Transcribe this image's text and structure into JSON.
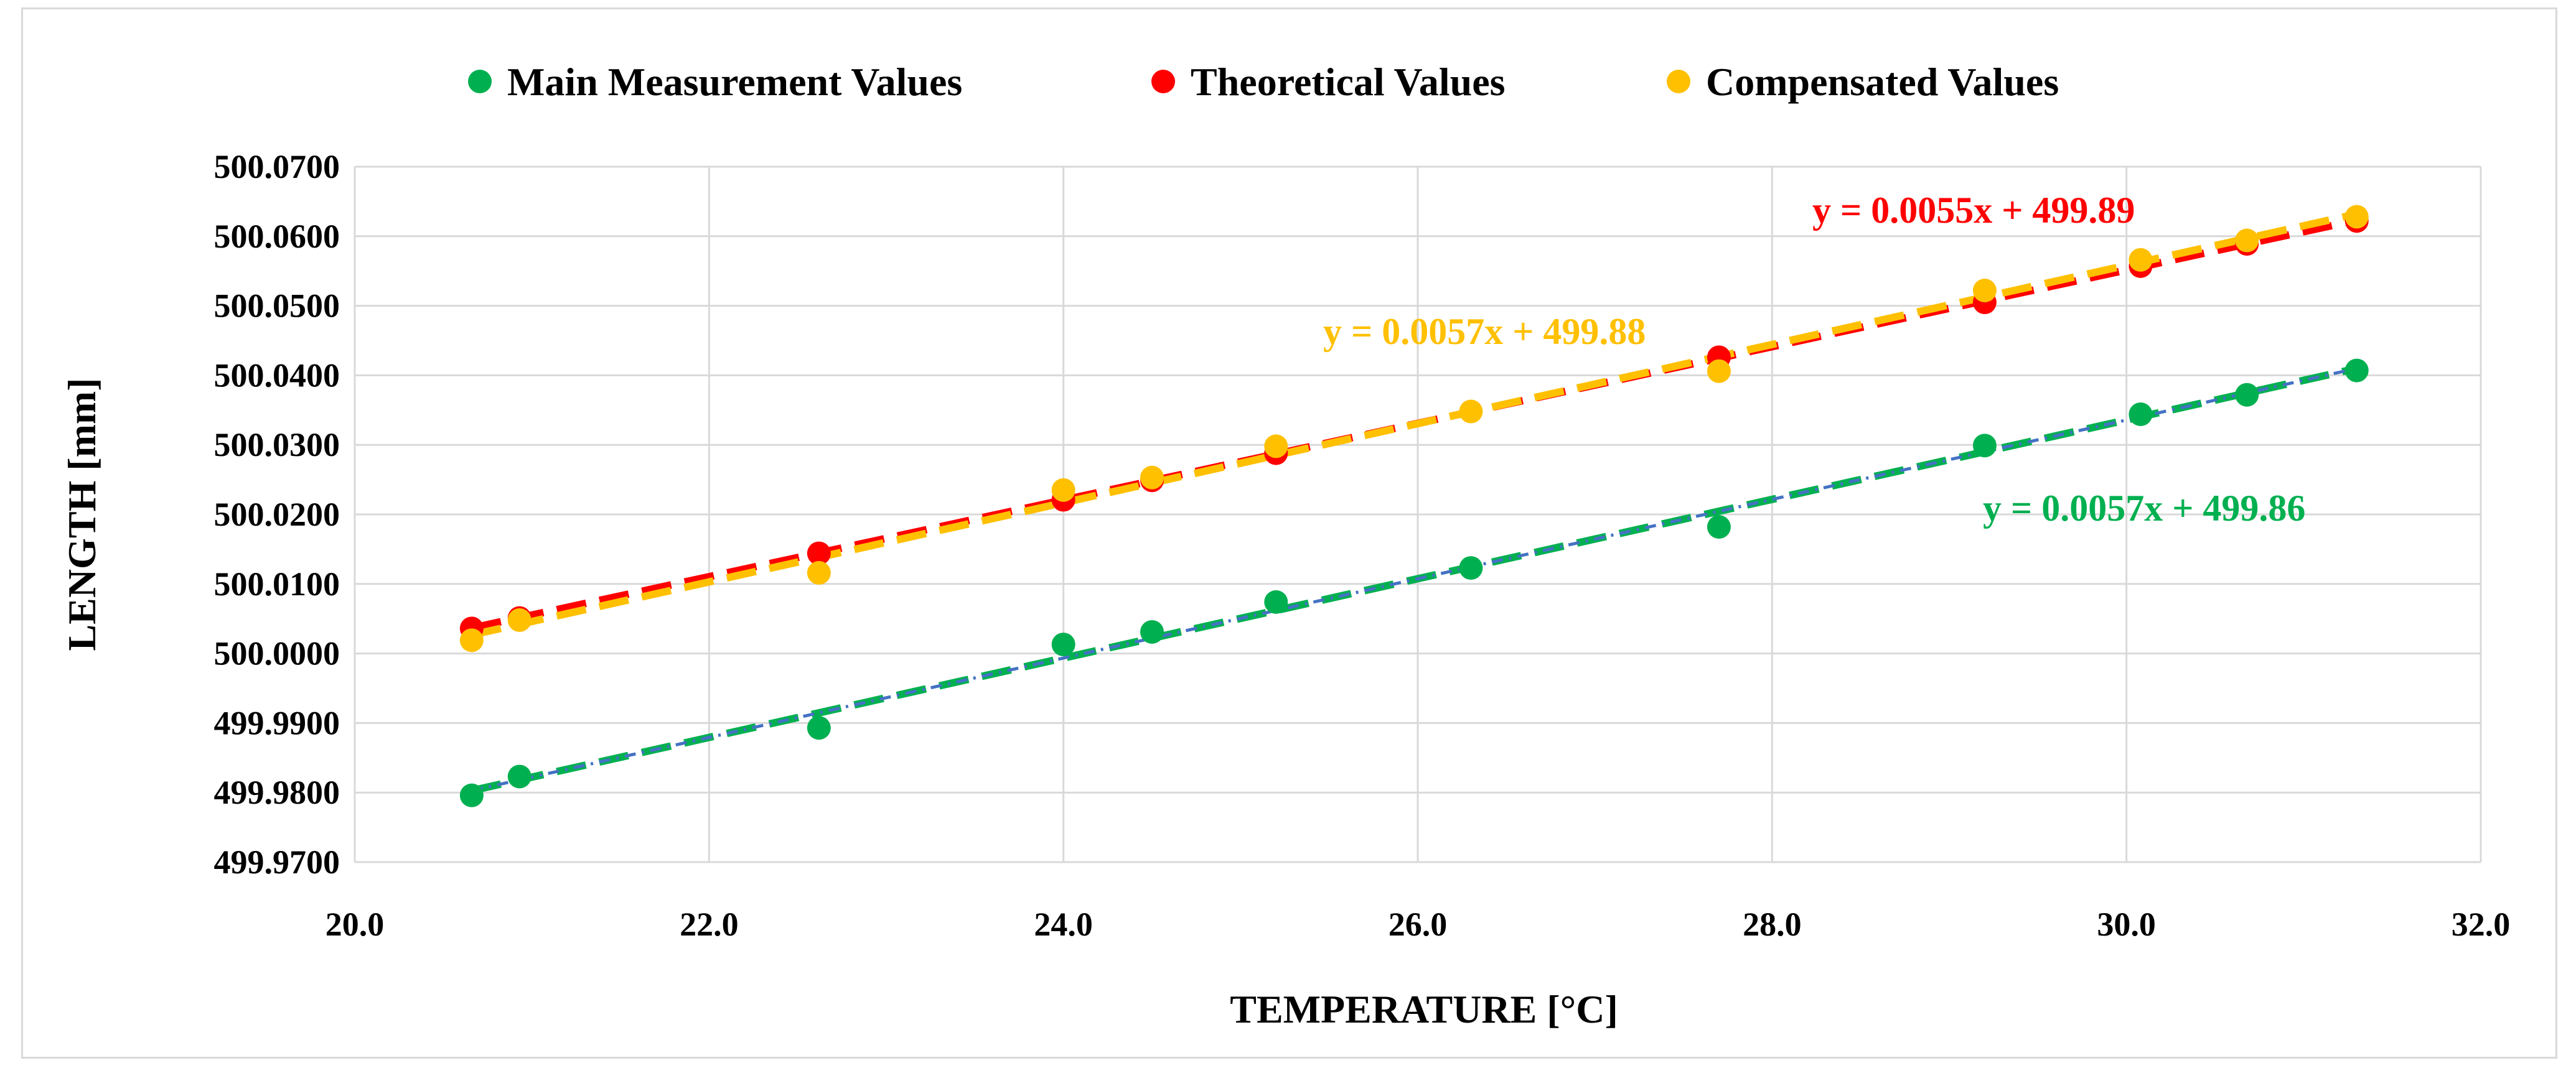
{
  "chart_data": {
    "type": "scatter",
    "title": "",
    "xlabel": "TEMPERATURE [°C]",
    "ylabel": "LENGTH [mm]",
    "xlim": [
      20.0,
      32.0
    ],
    "ylim": [
      499.97,
      500.07
    ],
    "x_ticks": [
      "20.0",
      "22.0",
      "24.0",
      "26.0",
      "28.0",
      "30.0",
      "32.0"
    ],
    "y_ticks": [
      "499.9700",
      "499.9800",
      "499.9900",
      "500.0000",
      "500.0100",
      "500.0200",
      "500.0300",
      "500.0400",
      "500.0500",
      "500.0600",
      "500.0700"
    ],
    "grid": true,
    "legend_position": "top",
    "series": [
      {
        "name": "Main Measurement Values",
        "color": "#00b050",
        "x": [
          20.66,
          20.93,
          22.62,
          24.0,
          24.5,
          25.2,
          26.3,
          27.7,
          29.2,
          30.08,
          30.68,
          31.3
        ],
        "y": [
          499.9796,
          499.9823,
          499.9893,
          500.0013,
          500.0031,
          500.0074,
          500.0123,
          500.0182,
          500.0299,
          500.0344,
          500.0372,
          500.0407
        ],
        "trendline": {
          "slope": 0.0057,
          "intercept": 499.86,
          "equation": "y = 0.0057x + 499.86",
          "color": "#00b050",
          "inner_color": "#4472c4"
        }
      },
      {
        "name": "Theoretical Values",
        "color": "#ff0000",
        "x": [
          20.66,
          20.93,
          22.62,
          24.0,
          24.5,
          25.2,
          27.7,
          29.2,
          30.08,
          30.68,
          31.3
        ],
        "y": [
          500.0036,
          500.0051,
          500.0144,
          500.0221,
          500.0249,
          500.0288,
          500.0426,
          500.0505,
          500.0557,
          500.0589,
          500.0622
        ],
        "trendline": {
          "slope": 0.0055,
          "intercept": 499.89,
          "equation": "y = 0.0055x + 499.89",
          "color": "#ff0000"
        }
      },
      {
        "name": "Compensated Values",
        "color": "#ffc000",
        "x": [
          20.66,
          20.93,
          22.62,
          24.0,
          24.5,
          25.2,
          26.3,
          27.7,
          29.2,
          30.08,
          30.68,
          31.3
        ],
        "y": [
          500.0019,
          500.0048,
          500.0116,
          500.0235,
          500.0253,
          500.0298,
          500.0348,
          500.0406,
          500.0522,
          500.0566,
          500.0594,
          500.0628
        ],
        "trendline": {
          "slope": 0.0057,
          "intercept": 499.88,
          "equation": "y = 0.0057x + 499.88",
          "color": "#ffc000"
        }
      }
    ]
  }
}
